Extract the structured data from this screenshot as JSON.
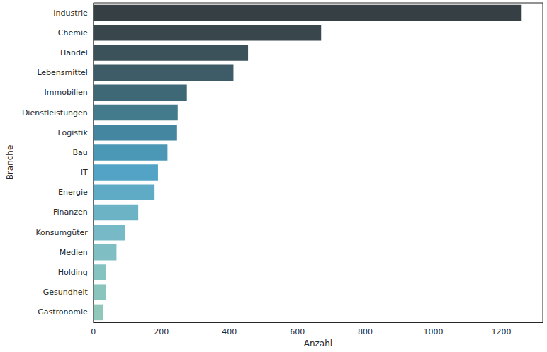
{
  "chart_data": {
    "type": "bar",
    "orientation": "horizontal",
    "xlabel": "Anzahl",
    "ylabel": "Branche",
    "categories": [
      "Industrie",
      "Chemie",
      "Handel",
      "Lebensmittel",
      "Immobilien",
      "Dienstleistungen",
      "Logistik",
      "Bau",
      "IT",
      "Energie",
      "Finanzen",
      "Konsumgüter",
      "Medien",
      "Holding",
      "Gesundheit",
      "Gastronomie"
    ],
    "values": [
      1260,
      670,
      455,
      412,
      275,
      248,
      246,
      218,
      190,
      180,
      132,
      93,
      68,
      38,
      36,
      28
    ],
    "colors": [
      "#363f43",
      "#39474d",
      "#3b525b",
      "#3d5c67",
      "#3f6876",
      "#437a8c",
      "#4485a0",
      "#4a97b6",
      "#52a3c5",
      "#5fabc6",
      "#6cb3c6",
      "#77b9c6",
      "#7fbfc3",
      "#85c3c0",
      "#89c5bd",
      "#90c7ba"
    ],
    "xlim": [
      0,
      1322
    ],
    "xticks": [
      0,
      200,
      400,
      600,
      800,
      1000,
      1200
    ],
    "grid": false
  }
}
